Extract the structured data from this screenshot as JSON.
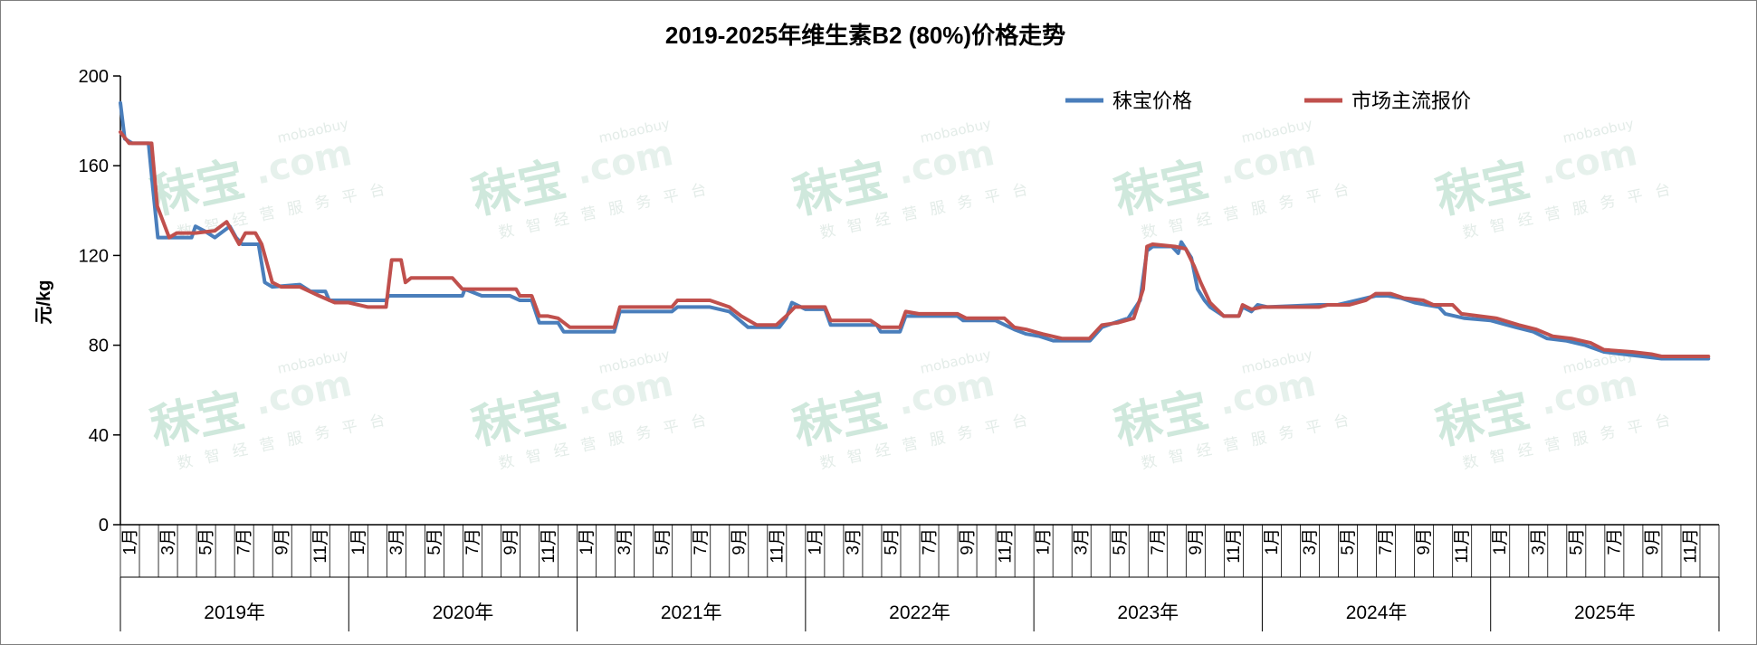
{
  "chart_data": {
    "type": "line",
    "title": "2019-2025年维生素B2 (80%)价格走势",
    "ylabel": "元/kg",
    "xlabel": "",
    "ylim": [
      0,
      200
    ],
    "yticks": [
      "0",
      "40",
      "80",
      "120",
      "160",
      "200"
    ],
    "grid": false,
    "legend_position": "top-right",
    "month_labels": [
      "1月",
      "3月",
      "5月",
      "7月",
      "9月",
      "11月"
    ],
    "years": [
      "2019年",
      "2020年",
      "2021年",
      "2022年",
      "2023年",
      "2024年",
      "2025年"
    ],
    "watermark": {
      "main": "秣宝",
      "domain": ".com",
      "brand": "mobaobuy",
      "sub": "数智经营服务平台"
    },
    "series": [
      {
        "name": "秣宝价格",
        "color": "#4a7ebb",
        "points": [
          [
            "2019-01-01",
            188
          ],
          [
            "2019-01-08",
            172
          ],
          [
            "2019-01-20",
            170
          ],
          [
            "2019-02-15",
            170
          ],
          [
            "2019-02-22",
            150
          ],
          [
            "2019-03-02",
            128
          ],
          [
            "2019-03-20",
            128
          ],
          [
            "2019-04-25",
            128
          ],
          [
            "2019-05-01",
            133
          ],
          [
            "2019-05-15",
            131
          ],
          [
            "2019-06-01",
            128
          ],
          [
            "2019-06-25",
            133
          ],
          [
            "2019-07-05",
            128
          ],
          [
            "2019-07-15",
            125
          ],
          [
            "2019-08-10",
            125
          ],
          [
            "2019-08-20",
            108
          ],
          [
            "2019-09-01",
            106
          ],
          [
            "2019-10-15",
            107
          ],
          [
            "2019-11-01",
            104
          ],
          [
            "2019-11-25",
            104
          ],
          [
            "2019-12-01",
            100
          ],
          [
            "2020-03-01",
            100
          ],
          [
            "2020-03-05",
            102
          ],
          [
            "2020-07-01",
            102
          ],
          [
            "2020-07-05",
            105
          ],
          [
            "2020-08-01",
            102
          ],
          [
            "2020-09-15",
            102
          ],
          [
            "2020-10-01",
            100
          ],
          [
            "2020-10-20",
            100
          ],
          [
            "2020-11-01",
            90
          ],
          [
            "2020-12-01",
            90
          ],
          [
            "2020-12-10",
            86
          ],
          [
            "2021-03-01",
            86
          ],
          [
            "2021-03-10",
            95
          ],
          [
            "2021-06-01",
            95
          ],
          [
            "2021-06-10",
            97
          ],
          [
            "2021-08-01",
            97
          ],
          [
            "2021-09-01",
            95
          ],
          [
            "2021-10-01",
            88
          ],
          [
            "2021-11-20",
            88
          ],
          [
            "2021-12-01",
            92
          ],
          [
            "2021-12-10",
            99
          ],
          [
            "2022-01-01",
            96
          ],
          [
            "2022-02-01",
            96
          ],
          [
            "2022-02-10",
            89
          ],
          [
            "2022-04-25",
            89
          ],
          [
            "2022-05-01",
            86
          ],
          [
            "2022-06-01",
            86
          ],
          [
            "2022-06-10",
            93
          ],
          [
            "2022-07-15",
            93
          ],
          [
            "2022-09-01",
            93
          ],
          [
            "2022-09-10",
            91
          ],
          [
            "2022-11-01",
            91
          ],
          [
            "2022-12-01",
            87
          ],
          [
            "2022-12-20",
            85
          ],
          [
            "2023-01-10",
            84
          ],
          [
            "2023-02-01",
            82
          ],
          [
            "2023-03-20",
            82
          ],
          [
            "2023-04-01",
            82
          ],
          [
            "2023-04-20",
            88
          ],
          [
            "2023-05-10",
            90
          ],
          [
            "2023-06-01",
            92
          ],
          [
            "2023-06-20",
            100
          ],
          [
            "2023-07-01",
            122
          ],
          [
            "2023-07-10",
            124
          ],
          [
            "2023-08-10",
            124
          ],
          [
            "2023-08-20",
            121
          ],
          [
            "2023-08-25",
            126
          ],
          [
            "2023-09-10",
            119
          ],
          [
            "2023-09-20",
            105
          ],
          [
            "2023-10-01",
            100
          ],
          [
            "2023-10-10",
            97
          ],
          [
            "2023-11-01",
            93
          ],
          [
            "2023-11-25",
            93
          ],
          [
            "2023-12-01",
            97
          ],
          [
            "2023-12-15",
            95
          ],
          [
            "2023-12-25",
            98
          ],
          [
            "2024-01-10",
            97
          ],
          [
            "2024-04-01",
            98
          ],
          [
            "2024-05-01",
            98
          ],
          [
            "2024-06-01",
            100
          ],
          [
            "2024-07-01",
            102
          ],
          [
            "2024-07-20",
            102
          ],
          [
            "2024-08-10",
            101
          ],
          [
            "2024-09-01",
            99
          ],
          [
            "2024-09-20",
            98
          ],
          [
            "2024-10-10",
            97
          ],
          [
            "2024-10-20",
            94
          ],
          [
            "2024-11-20",
            92
          ],
          [
            "2025-01-01",
            91
          ],
          [
            "2025-02-10",
            88
          ],
          [
            "2025-03-10",
            86
          ],
          [
            "2025-04-01",
            83
          ],
          [
            "2025-05-01",
            82
          ],
          [
            "2025-06-01",
            80
          ],
          [
            "2025-07-01",
            77
          ],
          [
            "2025-08-01",
            76
          ],
          [
            "2025-09-01",
            75
          ],
          [
            "2025-10-01",
            74
          ],
          [
            "2025-12-15",
            74
          ]
        ]
      },
      {
        "name": "市场主流报价",
        "color": "#c0504d",
        "points": [
          [
            "2019-01-01",
            175
          ],
          [
            "2019-01-15",
            170
          ],
          [
            "2019-02-20",
            170
          ],
          [
            "2019-03-01",
            142
          ],
          [
            "2019-03-20",
            128
          ],
          [
            "2019-04-01",
            130
          ],
          [
            "2019-04-25",
            130
          ],
          [
            "2019-05-01",
            130
          ],
          [
            "2019-06-01",
            131
          ],
          [
            "2019-06-20",
            135
          ],
          [
            "2019-07-10",
            125
          ],
          [
            "2019-07-20",
            130
          ],
          [
            "2019-08-05",
            130
          ],
          [
            "2019-08-15",
            125
          ],
          [
            "2019-09-01",
            108
          ],
          [
            "2019-09-15",
            106
          ],
          [
            "2019-10-15",
            106
          ],
          [
            "2019-11-15",
            102
          ],
          [
            "2019-12-10",
            99
          ],
          [
            "2020-01-01",
            99
          ],
          [
            "2020-02-01",
            97
          ],
          [
            "2020-03-01",
            97
          ],
          [
            "2020-03-10",
            118
          ],
          [
            "2020-03-25",
            118
          ],
          [
            "2020-04-01",
            108
          ],
          [
            "2020-04-10",
            110
          ],
          [
            "2020-06-15",
            110
          ],
          [
            "2020-07-01",
            105
          ],
          [
            "2020-09-25",
            105
          ],
          [
            "2020-10-01",
            102
          ],
          [
            "2020-10-20",
            102
          ],
          [
            "2020-11-01",
            93
          ],
          [
            "2020-11-15",
            93
          ],
          [
            "2020-12-01",
            92
          ],
          [
            "2020-12-20",
            88
          ],
          [
            "2021-03-01",
            88
          ],
          [
            "2021-03-10",
            97
          ],
          [
            "2021-06-01",
            97
          ],
          [
            "2021-06-10",
            100
          ],
          [
            "2021-08-01",
            100
          ],
          [
            "2021-09-01",
            97
          ],
          [
            "2021-09-20",
            93
          ],
          [
            "2021-10-15",
            89
          ],
          [
            "2021-11-15",
            89
          ],
          [
            "2021-12-01",
            93
          ],
          [
            "2021-12-15",
            97
          ],
          [
            "2022-01-15",
            97
          ],
          [
            "2022-02-01",
            97
          ],
          [
            "2022-02-10",
            91
          ],
          [
            "2022-04-15",
            91
          ],
          [
            "2022-05-01",
            88
          ],
          [
            "2022-06-01",
            88
          ],
          [
            "2022-06-10",
            95
          ],
          [
            "2022-07-01",
            94
          ],
          [
            "2022-09-01",
            94
          ],
          [
            "2022-09-15",
            92
          ],
          [
            "2022-11-15",
            92
          ],
          [
            "2022-12-01",
            88
          ],
          [
            "2022-12-20",
            87
          ],
          [
            "2023-01-15",
            85
          ],
          [
            "2023-02-15",
            83
          ],
          [
            "2023-03-31",
            83
          ],
          [
            "2023-04-20",
            89
          ],
          [
            "2023-05-15",
            90
          ],
          [
            "2023-06-10",
            92
          ],
          [
            "2023-06-25",
            105
          ],
          [
            "2023-07-01",
            124
          ],
          [
            "2023-07-10",
            125
          ],
          [
            "2023-08-15",
            124
          ],
          [
            "2023-09-01",
            123
          ],
          [
            "2023-09-15",
            115
          ],
          [
            "2023-09-25",
            108
          ],
          [
            "2023-10-10",
            99
          ],
          [
            "2023-11-01",
            93
          ],
          [
            "2023-11-25",
            93
          ],
          [
            "2023-12-01",
            98
          ],
          [
            "2023-12-15",
            96
          ],
          [
            "2024-01-01",
            97
          ],
          [
            "2024-04-01",
            97
          ],
          [
            "2024-04-15",
            98
          ],
          [
            "2024-05-20",
            98
          ],
          [
            "2024-06-15",
            100
          ],
          [
            "2024-07-01",
            103
          ],
          [
            "2024-07-25",
            103
          ],
          [
            "2024-08-15",
            101
          ],
          [
            "2024-09-15",
            100
          ],
          [
            "2024-10-01",
            98
          ],
          [
            "2024-11-01",
            98
          ],
          [
            "2024-11-15",
            94
          ],
          [
            "2025-01-10",
            92
          ],
          [
            "2025-02-15",
            89
          ],
          [
            "2025-03-15",
            87
          ],
          [
            "2025-04-10",
            84
          ],
          [
            "2025-05-10",
            83
          ],
          [
            "2025-06-10",
            81
          ],
          [
            "2025-07-01",
            78
          ],
          [
            "2025-08-15",
            77
          ],
          [
            "2025-09-15",
            76
          ],
          [
            "2025-10-01",
            75
          ],
          [
            "2025-12-15",
            75
          ]
        ]
      }
    ]
  }
}
